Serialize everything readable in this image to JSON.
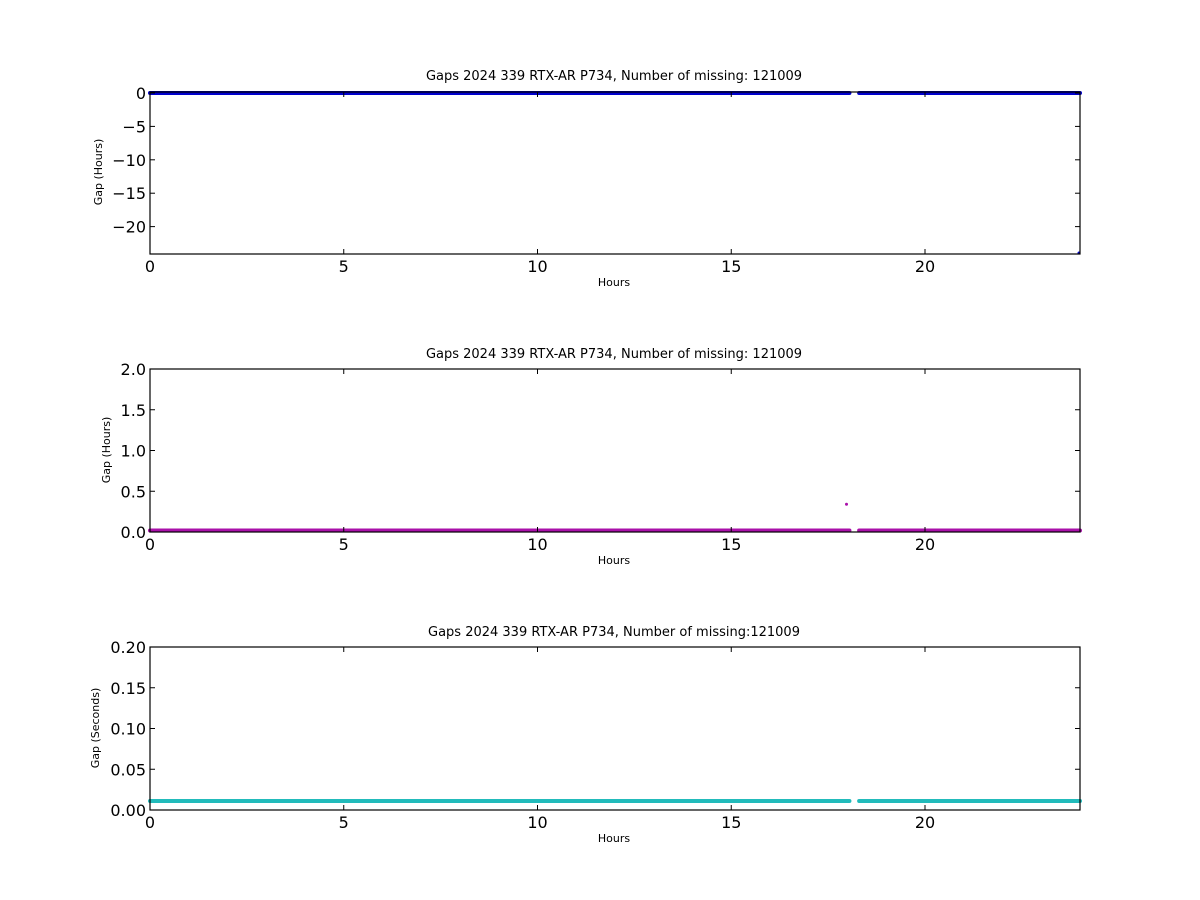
{
  "chart_data": [
    {
      "type": "scatter",
      "title": "Gaps 2024 339 RTX-AR  P734, Number of missing: 121009",
      "xlabel": "Hours",
      "ylabel": "Gap (Hours)",
      "xlim": [
        0,
        24
      ],
      "ylim": [
        -24.1,
        0.15
      ],
      "xticks": [
        "0",
        "5",
        "10",
        "15",
        "20"
      ],
      "yticks": [
        "0",
        "−5",
        "−10",
        "−15",
        "−20"
      ],
      "ytick_values": [
        0,
        -5,
        -10,
        -15,
        -20
      ],
      "grid": false,
      "color": "#0000cc",
      "series": [
        {
          "segments": [
            {
              "x_start": 0,
              "x_end": 18.05,
              "y": 0
            },
            {
              "x_start": 18.3,
              "x_end": 24,
              "y": 0
            }
          ]
        }
      ],
      "points": [
        {
          "x": 24,
          "y": -24
        }
      ]
    },
    {
      "type": "scatter",
      "title": "Gaps 2024 339 RTX-AR  P734, Number of missing: 121009",
      "xlabel": "Hours",
      "ylabel": "Gap (Hours)",
      "xlim": [
        0,
        24
      ],
      "ylim": [
        0,
        2.0
      ],
      "xticks": [
        "0",
        "5",
        "10",
        "15",
        "20"
      ],
      "yticks": [
        "0.0",
        "0.5",
        "1.0",
        "1.5",
        "2.0"
      ],
      "ytick_values": [
        0,
        0.5,
        1.0,
        1.5,
        2.0
      ],
      "grid": false,
      "color": "#aa11aa",
      "series": [
        {
          "segments": [
            {
              "x_start": 0,
              "x_end": 18.05,
              "y": 0.01
            },
            {
              "x_start": 18.3,
              "x_end": 24,
              "y": 0.01
            }
          ]
        }
      ],
      "points": [
        {
          "x": 18.0,
          "y": 0.34
        }
      ]
    },
    {
      "type": "scatter",
      "title": "Gaps 2024 339 RTX-AR  P734, Number of missing:121009",
      "xlabel": "Hours",
      "ylabel": "Gap (Seconds)",
      "xlim": [
        0,
        24
      ],
      "ylim": [
        0,
        0.2
      ],
      "xticks": [
        "0",
        "5",
        "10",
        "15",
        "20"
      ],
      "yticks": [
        "0.00",
        "0.05",
        "0.10",
        "0.15",
        "0.20"
      ],
      "ytick_values": [
        0,
        0.05,
        0.1,
        0.15,
        0.2
      ],
      "grid": false,
      "color": "#22bbbb",
      "series": [
        {
          "segments": [
            {
              "x_start": 0,
              "x_end": 18.05,
              "y": 0.011
            },
            {
              "x_start": 18.3,
              "x_end": 24,
              "y": 0.011
            }
          ]
        }
      ],
      "points": []
    }
  ]
}
